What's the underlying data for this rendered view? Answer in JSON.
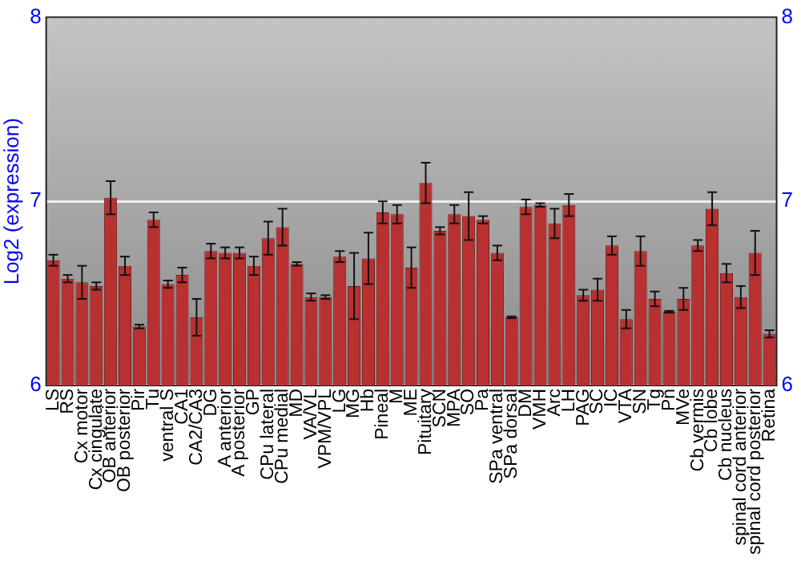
{
  "chart_data": {
    "type": "bar",
    "ylabel": "Log2 (expression)",
    "categories": [
      "LS",
      "RS",
      "Cx motor",
      "Cx cingulate",
      "OB anterior",
      "OB posterior",
      "Pir",
      "Tu",
      "ventral S",
      "CA1",
      "CA2/CA3",
      "DG",
      "A anterior",
      "A posterior",
      "GP",
      "CPu lateral",
      "CPu medial",
      "MD",
      "VA/VL",
      "VPM/VPL",
      "LG",
      "MG",
      "Hb",
      "Pineal",
      "M",
      "ME",
      "Pituitary",
      "SCN",
      "MPA",
      "SO",
      "Pa",
      "SPa ventral",
      "SPa dorsal",
      "DM",
      "VMH",
      "Arc",
      "LH",
      "PAG",
      "SC",
      "IC",
      "VTA",
      "SN",
      "Tg",
      "Pn",
      "MVe",
      "Cb vermis",
      "Cb lobe",
      "Cb nucleus",
      "spinal cord anterior",
      "spinal cord posterior",
      "Retina"
    ],
    "series": [
      {
        "color": "#b83030",
        "values": [
          6.68,
          6.58,
          6.56,
          6.54,
          7.02,
          6.65,
          6.32,
          6.9,
          6.55,
          6.6,
          6.37,
          6.73,
          6.72,
          6.72,
          6.65,
          6.8,
          6.86,
          6.66,
          6.48,
          6.48,
          6.7,
          6.54,
          6.69,
          6.94,
          6.93,
          6.64,
          7.1,
          6.84,
          6.93,
          6.92,
          6.9,
          6.72,
          6.37,
          6.97,
          6.98,
          6.88,
          6.98,
          6.49,
          6.52,
          6.76,
          6.36,
          6.73,
          6.47,
          6.4,
          6.47,
          6.76,
          6.96,
          6.61,
          6.48,
          6.72,
          6.28
        ],
        "errors": [
          0.03,
          0.02,
          0.09,
          0.02,
          0.09,
          0.05,
          0.01,
          0.04,
          0.02,
          0.04,
          0.1,
          0.04,
          0.03,
          0.03,
          0.05,
          0.09,
          0.1,
          0.01,
          0.02,
          0.01,
          0.03,
          0.18,
          0.14,
          0.06,
          0.05,
          0.11,
          0.11,
          0.02,
          0.05,
          0.13,
          0.02,
          0.04,
          0.005,
          0.04,
          0.01,
          0.08,
          0.06,
          0.03,
          0.06,
          0.05,
          0.05,
          0.08,
          0.04,
          0.005,
          0.06,
          0.03,
          0.09,
          0.05,
          0.06,
          0.12,
          0.02
        ]
      }
    ],
    "ylim": [
      6,
      8
    ],
    "yticks": [
      6,
      7,
      8
    ],
    "y2lim": [
      6,
      8
    ],
    "y2ticks": [
      6,
      7,
      8
    ],
    "grid": "y",
    "legend": false
  }
}
